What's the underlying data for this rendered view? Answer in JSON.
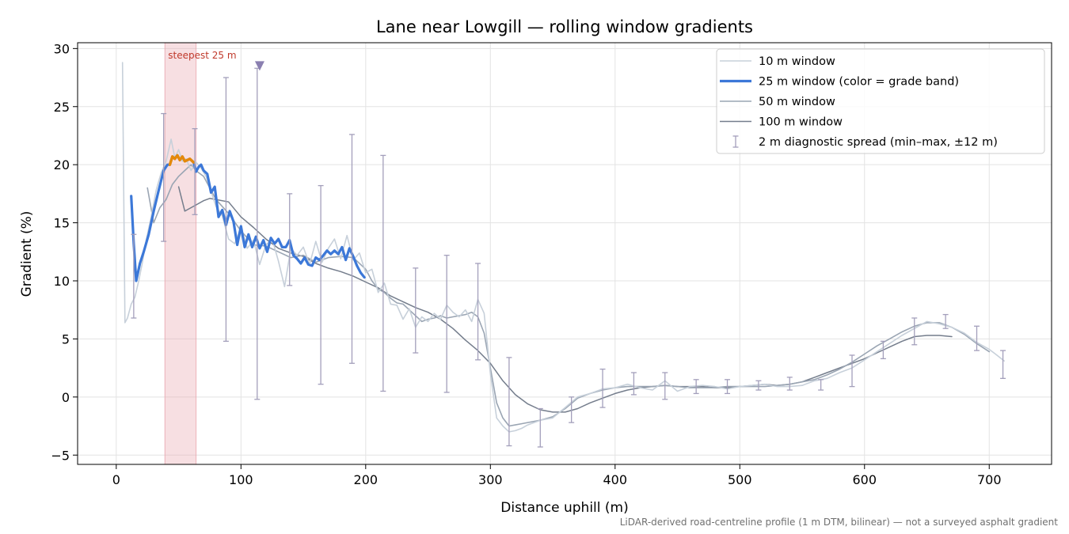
{
  "chart_data": {
    "type": "line",
    "title": "Lane near Lowgill — rolling window gradients",
    "xlabel": "Distance uphill (m)",
    "ylabel": "Gradient (%)",
    "xlim": [
      -31,
      750
    ],
    "ylim": [
      -5.8,
      30.5
    ],
    "xticks": [
      0,
      100,
      200,
      300,
      400,
      500,
      600,
      700
    ],
    "yticks": [
      -5,
      0,
      5,
      10,
      15,
      20,
      25,
      30
    ],
    "grid": true,
    "legend_position": "top-right",
    "footnote": "LiDAR-derived road-centreline profile (1 m DTM, bilinear) — not a surveyed asphalt gradient",
    "highlight": {
      "label": "steepest 25 m",
      "x_start": 39,
      "x_end": 64,
      "color": "#e8a3ab"
    },
    "max_marker": {
      "x": 115,
      "y": 28.5,
      "color": "#8a7fb0"
    },
    "series": [
      {
        "name": "10 m window",
        "color": "#c7d0da",
        "x": [
          5,
          7,
          9,
          12,
          15,
          18,
          21,
          24,
          28,
          32,
          36,
          40,
          44,
          47,
          50,
          53,
          56,
          60,
          64,
          68,
          72,
          76,
          80,
          85,
          90,
          95,
          100,
          105,
          110,
          115,
          120,
          125,
          130,
          135,
          140,
          145,
          150,
          155,
          160,
          165,
          170,
          175,
          180,
          185,
          190,
          195,
          200,
          205,
          210,
          215,
          220,
          225,
          230,
          235,
          240,
          245,
          250,
          255,
          260,
          265,
          270,
          275,
          280,
          285,
          290,
          295,
          300,
          305,
          310,
          315,
          320,
          325,
          330,
          340,
          350,
          360,
          370,
          380,
          390,
          400,
          410,
          420,
          430,
          440,
          450,
          460,
          470,
          480,
          490,
          500,
          510,
          520,
          530,
          540,
          550,
          560,
          570,
          580,
          590,
          600,
          610,
          620,
          630,
          640,
          650,
          660,
          670,
          680,
          690,
          700,
          705,
          712
        ],
        "y": [
          28.8,
          6.4,
          6.8,
          8.0,
          8.6,
          10.0,
          11.6,
          13.5,
          15.5,
          17.8,
          19.3,
          20.3,
          22.2,
          20.6,
          21.3,
          20.3,
          20.5,
          19.5,
          20.2,
          19.7,
          19.0,
          17.7,
          16.4,
          15.6,
          13.6,
          13.2,
          14.6,
          12.8,
          13.5,
          11.4,
          13.1,
          13.6,
          11.7,
          9.5,
          12.8,
          12.2,
          12.9,
          11.4,
          13.4,
          11.6,
          12.8,
          13.6,
          11.9,
          13.9,
          11.8,
          12.4,
          10.7,
          11.0,
          9.0,
          9.8,
          8.0,
          7.9,
          6.7,
          7.6,
          6.0,
          6.9,
          6.5,
          7.2,
          6.7,
          7.9,
          7.3,
          6.9,
          7.5,
          6.5,
          8.4,
          7.2,
          2.0,
          -1.8,
          -2.5,
          -3.0,
          -2.9,
          -2.7,
          -2.4,
          -2.0,
          -1.8,
          -0.9,
          0.0,
          0.3,
          0.7,
          0.8,
          1.1,
          0.8,
          0.6,
          1.4,
          0.5,
          0.9,
          1.0,
          0.9,
          0.7,
          0.9,
          1.0,
          1.1,
          0.9,
          0.9,
          1.0,
          1.4,
          1.6,
          2.1,
          2.5,
          3.2,
          3.9,
          4.6,
          5.3,
          5.9,
          6.5,
          6.3,
          6.0,
          5.5,
          4.7,
          4.1,
          3.7,
          3.1
        ]
      },
      {
        "name": "25 m window (color = grade band)",
        "color": "#3c78d8",
        "highlight_color": "#e5890a",
        "highlight_x_range": [
          43,
          62
        ],
        "x": [
          12,
          14,
          16,
          19,
          22,
          26,
          30,
          34,
          38,
          41,
          43,
          45,
          47,
          49,
          51,
          53,
          55,
          57,
          59,
          62,
          64,
          66,
          68,
          70,
          73,
          76,
          79,
          82,
          85,
          88,
          91,
          94,
          97,
          100,
          103,
          106,
          109,
          112,
          115,
          118,
          121,
          124,
          127,
          130,
          133,
          136,
          139,
          142,
          145,
          148,
          151,
          154,
          157,
          160,
          163,
          166,
          169,
          172,
          175,
          178,
          181,
          184,
          187,
          190,
          193,
          196,
          199
        ],
        "y": [
          17.3,
          13.2,
          10.0,
          11.5,
          12.5,
          14.0,
          16.0,
          17.8,
          19.5,
          20.0,
          20.0,
          20.7,
          20.5,
          20.8,
          20.4,
          20.7,
          20.3,
          20.4,
          20.5,
          20.2,
          19.4,
          19.8,
          20.0,
          19.5,
          19.2,
          17.6,
          18.1,
          15.5,
          16.1,
          14.8,
          16.0,
          15.1,
          13.1,
          14.7,
          12.9,
          14.0,
          12.9,
          13.8,
          12.8,
          13.5,
          12.5,
          13.7,
          13.2,
          13.6,
          12.9,
          12.9,
          13.5,
          12.2,
          11.9,
          11.5,
          12.0,
          11.4,
          11.3,
          12.0,
          11.8,
          12.2,
          12.6,
          12.3,
          12.6,
          12.3,
          12.9,
          11.8,
          12.8,
          12.1,
          11.3,
          10.7,
          10.3
        ]
      },
      {
        "name": "50 m window",
        "color": "#9aa5b3",
        "x": [
          25,
          30,
          35,
          40,
          45,
          50,
          55,
          60,
          65,
          70,
          75,
          80,
          90,
          100,
          110,
          120,
          130,
          140,
          150,
          160,
          170,
          180,
          190,
          200,
          205,
          210,
          215,
          220,
          225,
          230,
          235,
          240,
          245,
          250,
          255,
          260,
          265,
          270,
          275,
          280,
          285,
          290,
          295,
          300,
          305,
          310,
          315,
          320,
          325,
          330,
          340,
          350,
          360,
          370,
          380,
          390,
          400,
          410,
          420,
          430,
          440,
          450,
          460,
          470,
          480,
          490,
          500,
          510,
          520,
          530,
          540,
          550,
          560,
          570,
          580,
          590,
          600,
          610,
          620,
          630,
          640,
          650,
          660,
          670,
          680,
          690,
          700
        ],
        "y": [
          18.0,
          15.0,
          16.3,
          17.0,
          18.3,
          19.0,
          19.5,
          20.0,
          19.4,
          19.0,
          18.0,
          17.0,
          15.8,
          14.3,
          13.1,
          13.0,
          12.5,
          12.0,
          12.2,
          11.6,
          12.0,
          12.1,
          12.0,
          11.0,
          10.0,
          9.3,
          9.0,
          8.5,
          8.1,
          8.0,
          7.5,
          7.0,
          6.5,
          6.7,
          6.8,
          7.0,
          6.8,
          6.9,
          7.0,
          7.1,
          7.3,
          6.9,
          5.5,
          2.5,
          -0.5,
          -1.8,
          -2.5,
          -2.4,
          -2.3,
          -2.2,
          -2.0,
          -1.7,
          -1.0,
          -0.1,
          0.3,
          0.6,
          0.8,
          0.9,
          0.9,
          0.9,
          1.0,
          0.9,
          0.8,
          0.8,
          0.8,
          0.9,
          0.9,
          0.9,
          0.9,
          1.0,
          1.1,
          1.3,
          1.5,
          1.9,
          2.4,
          3.0,
          3.7,
          4.4,
          5.0,
          5.6,
          6.1,
          6.4,
          6.4,
          6.0,
          5.4,
          4.6,
          3.9
        ]
      },
      {
        "name": "100 m window",
        "color": "#747d8c",
        "x": [
          50,
          55,
          60,
          65,
          70,
          75,
          80,
          90,
          100,
          110,
          120,
          130,
          140,
          150,
          160,
          170,
          180,
          190,
          200,
          210,
          220,
          230,
          240,
          250,
          260,
          270,
          280,
          290,
          300,
          310,
          320,
          330,
          340,
          350,
          360,
          370,
          380,
          390,
          400,
          410,
          420,
          430,
          440,
          450,
          460,
          470,
          480,
          490,
          500,
          510,
          520,
          530,
          540,
          550,
          560,
          570,
          580,
          590,
          600,
          610,
          620,
          630,
          640,
          650,
          660,
          670
        ],
        "y": [
          18.1,
          16.0,
          16.3,
          16.6,
          16.9,
          17.1,
          17.0,
          16.8,
          15.5,
          14.6,
          13.6,
          12.8,
          12.4,
          12.1,
          11.5,
          11.1,
          10.8,
          10.4,
          9.9,
          9.4,
          8.7,
          8.2,
          7.7,
          7.3,
          6.7,
          5.9,
          4.9,
          4.0,
          2.9,
          1.4,
          0.2,
          -0.6,
          -1.1,
          -1.3,
          -1.3,
          -1.0,
          -0.5,
          -0.1,
          0.3,
          0.6,
          0.8,
          0.9,
          1.0,
          0.9,
          0.9,
          0.9,
          0.8,
          0.8,
          0.9,
          1.0,
          1.1,
          1.0,
          1.1,
          1.3,
          1.7,
          2.1,
          2.5,
          2.9,
          3.3,
          3.8,
          4.3,
          4.8,
          5.2,
          5.3,
          5.3,
          5.2
        ]
      }
    ],
    "error_bars": {
      "name": "2 m diagnostic spread (min–max, ±12 m)",
      "color": "#a39fbb",
      "x": [
        14,
        38,
        63,
        88,
        113,
        139,
        164,
        189,
        214,
        240,
        265,
        290,
        315,
        340,
        365,
        390,
        415,
        440,
        465,
        490,
        515,
        540,
        565,
        590,
        615,
        640,
        665,
        690,
        711
      ],
      "low": [
        6.8,
        13.4,
        15.7,
        4.8,
        -0.2,
        9.6,
        1.1,
        2.9,
        0.5,
        3.8,
        0.4,
        3.2,
        -4.2,
        -4.3,
        -2.2,
        -0.9,
        0.2,
        -0.2,
        0.3,
        0.3,
        0.6,
        0.6,
        0.6,
        0.9,
        3.3,
        4.5,
        5.9,
        4.0,
        1.6
      ],
      "high": [
        14.0,
        24.4,
        23.1,
        27.5,
        28.3,
        17.5,
        18.2,
        22.6,
        20.8,
        11.1,
        12.2,
        11.5,
        3.4,
        -1.0,
        0.0,
        2.4,
        2.1,
        2.1,
        1.5,
        1.5,
        1.4,
        1.7,
        1.5,
        3.6,
        4.8,
        6.8,
        7.1,
        6.1,
        4.0
      ]
    }
  }
}
